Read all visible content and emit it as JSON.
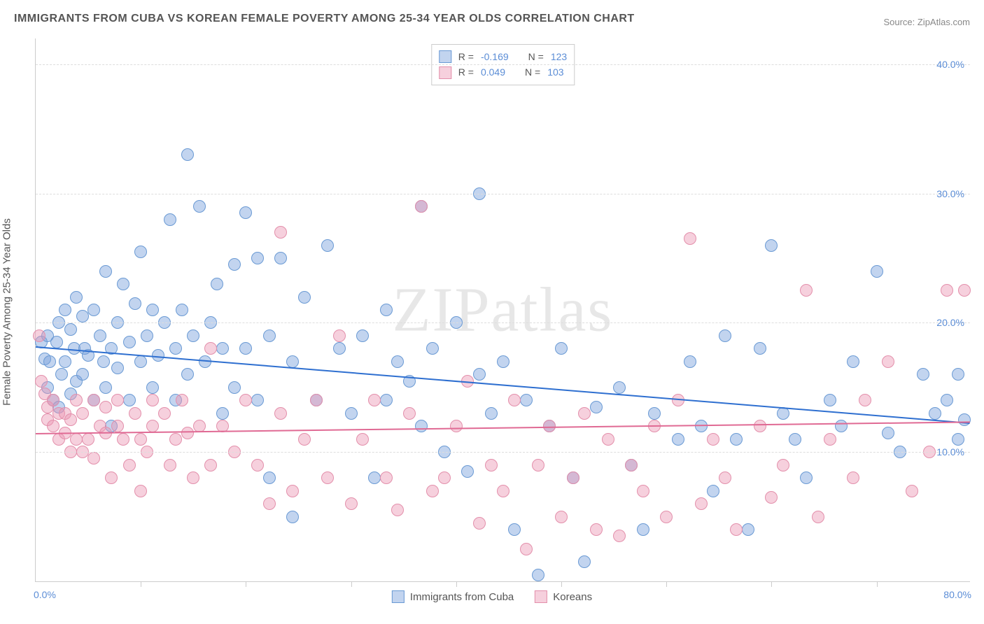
{
  "title": "IMMIGRANTS FROM CUBA VS KOREAN FEMALE POVERTY AMONG 25-34 YEAR OLDS CORRELATION CHART",
  "source": "Source: ZipAtlas.com",
  "watermark": "ZIPatlas",
  "chart": {
    "type": "scatter",
    "background_color": "#ffffff",
    "grid_color": "#dddddd",
    "border_color": "#cccccc",
    "axis_label_color": "#5b8dd6",
    "text_color": "#555555",
    "ylabel": "Female Poverty Among 25-34 Year Olds",
    "xlim": [
      0,
      80
    ],
    "ylim": [
      0,
      42
    ],
    "yticks": [
      10,
      20,
      30,
      40
    ],
    "ytick_labels": [
      "10.0%",
      "20.0%",
      "30.0%",
      "40.0%"
    ],
    "xtick_labels": {
      "left": "0.0%",
      "right": "80.0%"
    },
    "xtick_positions": [
      9,
      18,
      27,
      36,
      45,
      54,
      63,
      72
    ],
    "marker_radius": 9,
    "marker_opacity": 0.6,
    "trend_line_width": 2,
    "series": [
      {
        "id": "cuba",
        "label": "Immigrants from Cuba",
        "fill_color": "rgba(120,160,220,0.45)",
        "stroke_color": "#6a9ad4",
        "line_color": "#2e6fd0",
        "R": "-0.169",
        "N": "123",
        "trend": {
          "x1": 0,
          "y1": 18.2,
          "x2": 80,
          "y2": 12.3
        },
        "points": [
          [
            0.5,
            18.5
          ],
          [
            0.8,
            17.2
          ],
          [
            1,
            19
          ],
          [
            1,
            15
          ],
          [
            1.5,
            14
          ],
          [
            1.2,
            17
          ],
          [
            1.8,
            18.5
          ],
          [
            2,
            13.5
          ],
          [
            2,
            20
          ],
          [
            2.2,
            16
          ],
          [
            2.5,
            21
          ],
          [
            2.5,
            17
          ],
          [
            3,
            19.5
          ],
          [
            3,
            14.5
          ],
          [
            3.3,
            18
          ],
          [
            3.5,
            15.5
          ],
          [
            3.5,
            22
          ],
          [
            4,
            16
          ],
          [
            4,
            20.5
          ],
          [
            4.2,
            18
          ],
          [
            4.5,
            17.5
          ],
          [
            5,
            21
          ],
          [
            5,
            14
          ],
          [
            5.5,
            19
          ],
          [
            5.8,
            17
          ],
          [
            6,
            24
          ],
          [
            6,
            15
          ],
          [
            6.5,
            18
          ],
          [
            6.5,
            12
          ],
          [
            7,
            20
          ],
          [
            7,
            16.5
          ],
          [
            7.5,
            23
          ],
          [
            8,
            18.5
          ],
          [
            8,
            14
          ],
          [
            8.5,
            21.5
          ],
          [
            9,
            17
          ],
          [
            9,
            25.5
          ],
          [
            9.5,
            19
          ],
          [
            10,
            15
          ],
          [
            10,
            21
          ],
          [
            10.5,
            17.5
          ],
          [
            11,
            20
          ],
          [
            11.5,
            28
          ],
          [
            12,
            18
          ],
          [
            12,
            14
          ],
          [
            12.5,
            21
          ],
          [
            13,
            33
          ],
          [
            13,
            16
          ],
          [
            13.5,
            19
          ],
          [
            14,
            29
          ],
          [
            14.5,
            17
          ],
          [
            15,
            20
          ],
          [
            15.5,
            23
          ],
          [
            16,
            13
          ],
          [
            16,
            18
          ],
          [
            17,
            24.5
          ],
          [
            17,
            15
          ],
          [
            18,
            28.5
          ],
          [
            18,
            18
          ],
          [
            19,
            25
          ],
          [
            19,
            14
          ],
          [
            20,
            19
          ],
          [
            20,
            8
          ],
          [
            21,
            25
          ],
          [
            22,
            5
          ],
          [
            22,
            17
          ],
          [
            23,
            22
          ],
          [
            24,
            14
          ],
          [
            25,
            26
          ],
          [
            26,
            18
          ],
          [
            27,
            13
          ],
          [
            28,
            19
          ],
          [
            29,
            8
          ],
          [
            30,
            14
          ],
          [
            30,
            21
          ],
          [
            31,
            17
          ],
          [
            32,
            15.5
          ],
          [
            33,
            29
          ],
          [
            33,
            12
          ],
          [
            34,
            18
          ],
          [
            35,
            10
          ],
          [
            36,
            20
          ],
          [
            37,
            8.5
          ],
          [
            38,
            16
          ],
          [
            38,
            30
          ],
          [
            39,
            13
          ],
          [
            40,
            17
          ],
          [
            41,
            4
          ],
          [
            42,
            14
          ],
          [
            43,
            0.5
          ],
          [
            44,
            12
          ],
          [
            45,
            18
          ],
          [
            46,
            8
          ],
          [
            47,
            1.5
          ],
          [
            48,
            13.5
          ],
          [
            50,
            15
          ],
          [
            51,
            9
          ],
          [
            52,
            4
          ],
          [
            53,
            13
          ],
          [
            55,
            11
          ],
          [
            56,
            17
          ],
          [
            57,
            12
          ],
          [
            58,
            7
          ],
          [
            59,
            19
          ],
          [
            60,
            11
          ],
          [
            61,
            4
          ],
          [
            62,
            18
          ],
          [
            63,
            26
          ],
          [
            64,
            13
          ],
          [
            65,
            11
          ],
          [
            66,
            8
          ],
          [
            68,
            14
          ],
          [
            69,
            12
          ],
          [
            70,
            17
          ],
          [
            72,
            24
          ],
          [
            73,
            11.5
          ],
          [
            74,
            10
          ],
          [
            76,
            16
          ],
          [
            77,
            13
          ],
          [
            78,
            14
          ],
          [
            79,
            11
          ],
          [
            79,
            16
          ],
          [
            79.5,
            12.5
          ]
        ]
      },
      {
        "id": "koreans",
        "label": "Koreans",
        "fill_color": "rgba(235,150,180,0.45)",
        "stroke_color": "#e38fab",
        "line_color": "#e06a94",
        "R": "0.049",
        "N": "103",
        "trend": {
          "x1": 0,
          "y1": 11.5,
          "x2": 80,
          "y2": 12.4
        },
        "points": [
          [
            0.3,
            19
          ],
          [
            0.5,
            15.5
          ],
          [
            0.8,
            14.5
          ],
          [
            1,
            12.5
          ],
          [
            1,
            13.5
          ],
          [
            1.5,
            14
          ],
          [
            1.5,
            12
          ],
          [
            2,
            13
          ],
          [
            2,
            11
          ],
          [
            2.5,
            11.5
          ],
          [
            2.5,
            13
          ],
          [
            3,
            10
          ],
          [
            3,
            12.5
          ],
          [
            3.5,
            11
          ],
          [
            3.5,
            14
          ],
          [
            4,
            10
          ],
          [
            4,
            13
          ],
          [
            4.5,
            11
          ],
          [
            5,
            9.5
          ],
          [
            5,
            14
          ],
          [
            5.5,
            12
          ],
          [
            6,
            11.5
          ],
          [
            6,
            13.5
          ],
          [
            6.5,
            8
          ],
          [
            7,
            12
          ],
          [
            7,
            14
          ],
          [
            7.5,
            11
          ],
          [
            8,
            9
          ],
          [
            8.5,
            13
          ],
          [
            9,
            11
          ],
          [
            9,
            7
          ],
          [
            9.5,
            10
          ],
          [
            10,
            14
          ],
          [
            10,
            12
          ],
          [
            11,
            13
          ],
          [
            11.5,
            9
          ],
          [
            12,
            11
          ],
          [
            12.5,
            14
          ],
          [
            13,
            11.5
          ],
          [
            13.5,
            8
          ],
          [
            14,
            12
          ],
          [
            15,
            18
          ],
          [
            15,
            9
          ],
          [
            16,
            12
          ],
          [
            17,
            10
          ],
          [
            18,
            14
          ],
          [
            19,
            9
          ],
          [
            20,
            6
          ],
          [
            21,
            27
          ],
          [
            21,
            13
          ],
          [
            22,
            7
          ],
          [
            23,
            11
          ],
          [
            24,
            14
          ],
          [
            25,
            8
          ],
          [
            26,
            19
          ],
          [
            27,
            6
          ],
          [
            28,
            11
          ],
          [
            29,
            14
          ],
          [
            30,
            8
          ],
          [
            31,
            5.5
          ],
          [
            32,
            13
          ],
          [
            33,
            29
          ],
          [
            34,
            7
          ],
          [
            35,
            8
          ],
          [
            36,
            12
          ],
          [
            37,
            15.5
          ],
          [
            38,
            4.5
          ],
          [
            39,
            9
          ],
          [
            40,
            7
          ],
          [
            41,
            14
          ],
          [
            42,
            2.5
          ],
          [
            43,
            9
          ],
          [
            44,
            12
          ],
          [
            45,
            5
          ],
          [
            46,
            8
          ],
          [
            47,
            13
          ],
          [
            48,
            4
          ],
          [
            49,
            11
          ],
          [
            50,
            3.5
          ],
          [
            51,
            9
          ],
          [
            52,
            7
          ],
          [
            53,
            12
          ],
          [
            54,
            5
          ],
          [
            55,
            14
          ],
          [
            56,
            26.5
          ],
          [
            57,
            6
          ],
          [
            58,
            11
          ],
          [
            59,
            8
          ],
          [
            60,
            4
          ],
          [
            62,
            12
          ],
          [
            63,
            6.5
          ],
          [
            64,
            9
          ],
          [
            66,
            22.5
          ],
          [
            67,
            5
          ],
          [
            68,
            11
          ],
          [
            70,
            8
          ],
          [
            71,
            14
          ],
          [
            73,
            17
          ],
          [
            75,
            7
          ],
          [
            76.5,
            10
          ],
          [
            78,
            22.5
          ],
          [
            79.5,
            22.5
          ]
        ]
      }
    ]
  },
  "legend_top_label_R": "R =",
  "legend_top_label_N": "N ="
}
